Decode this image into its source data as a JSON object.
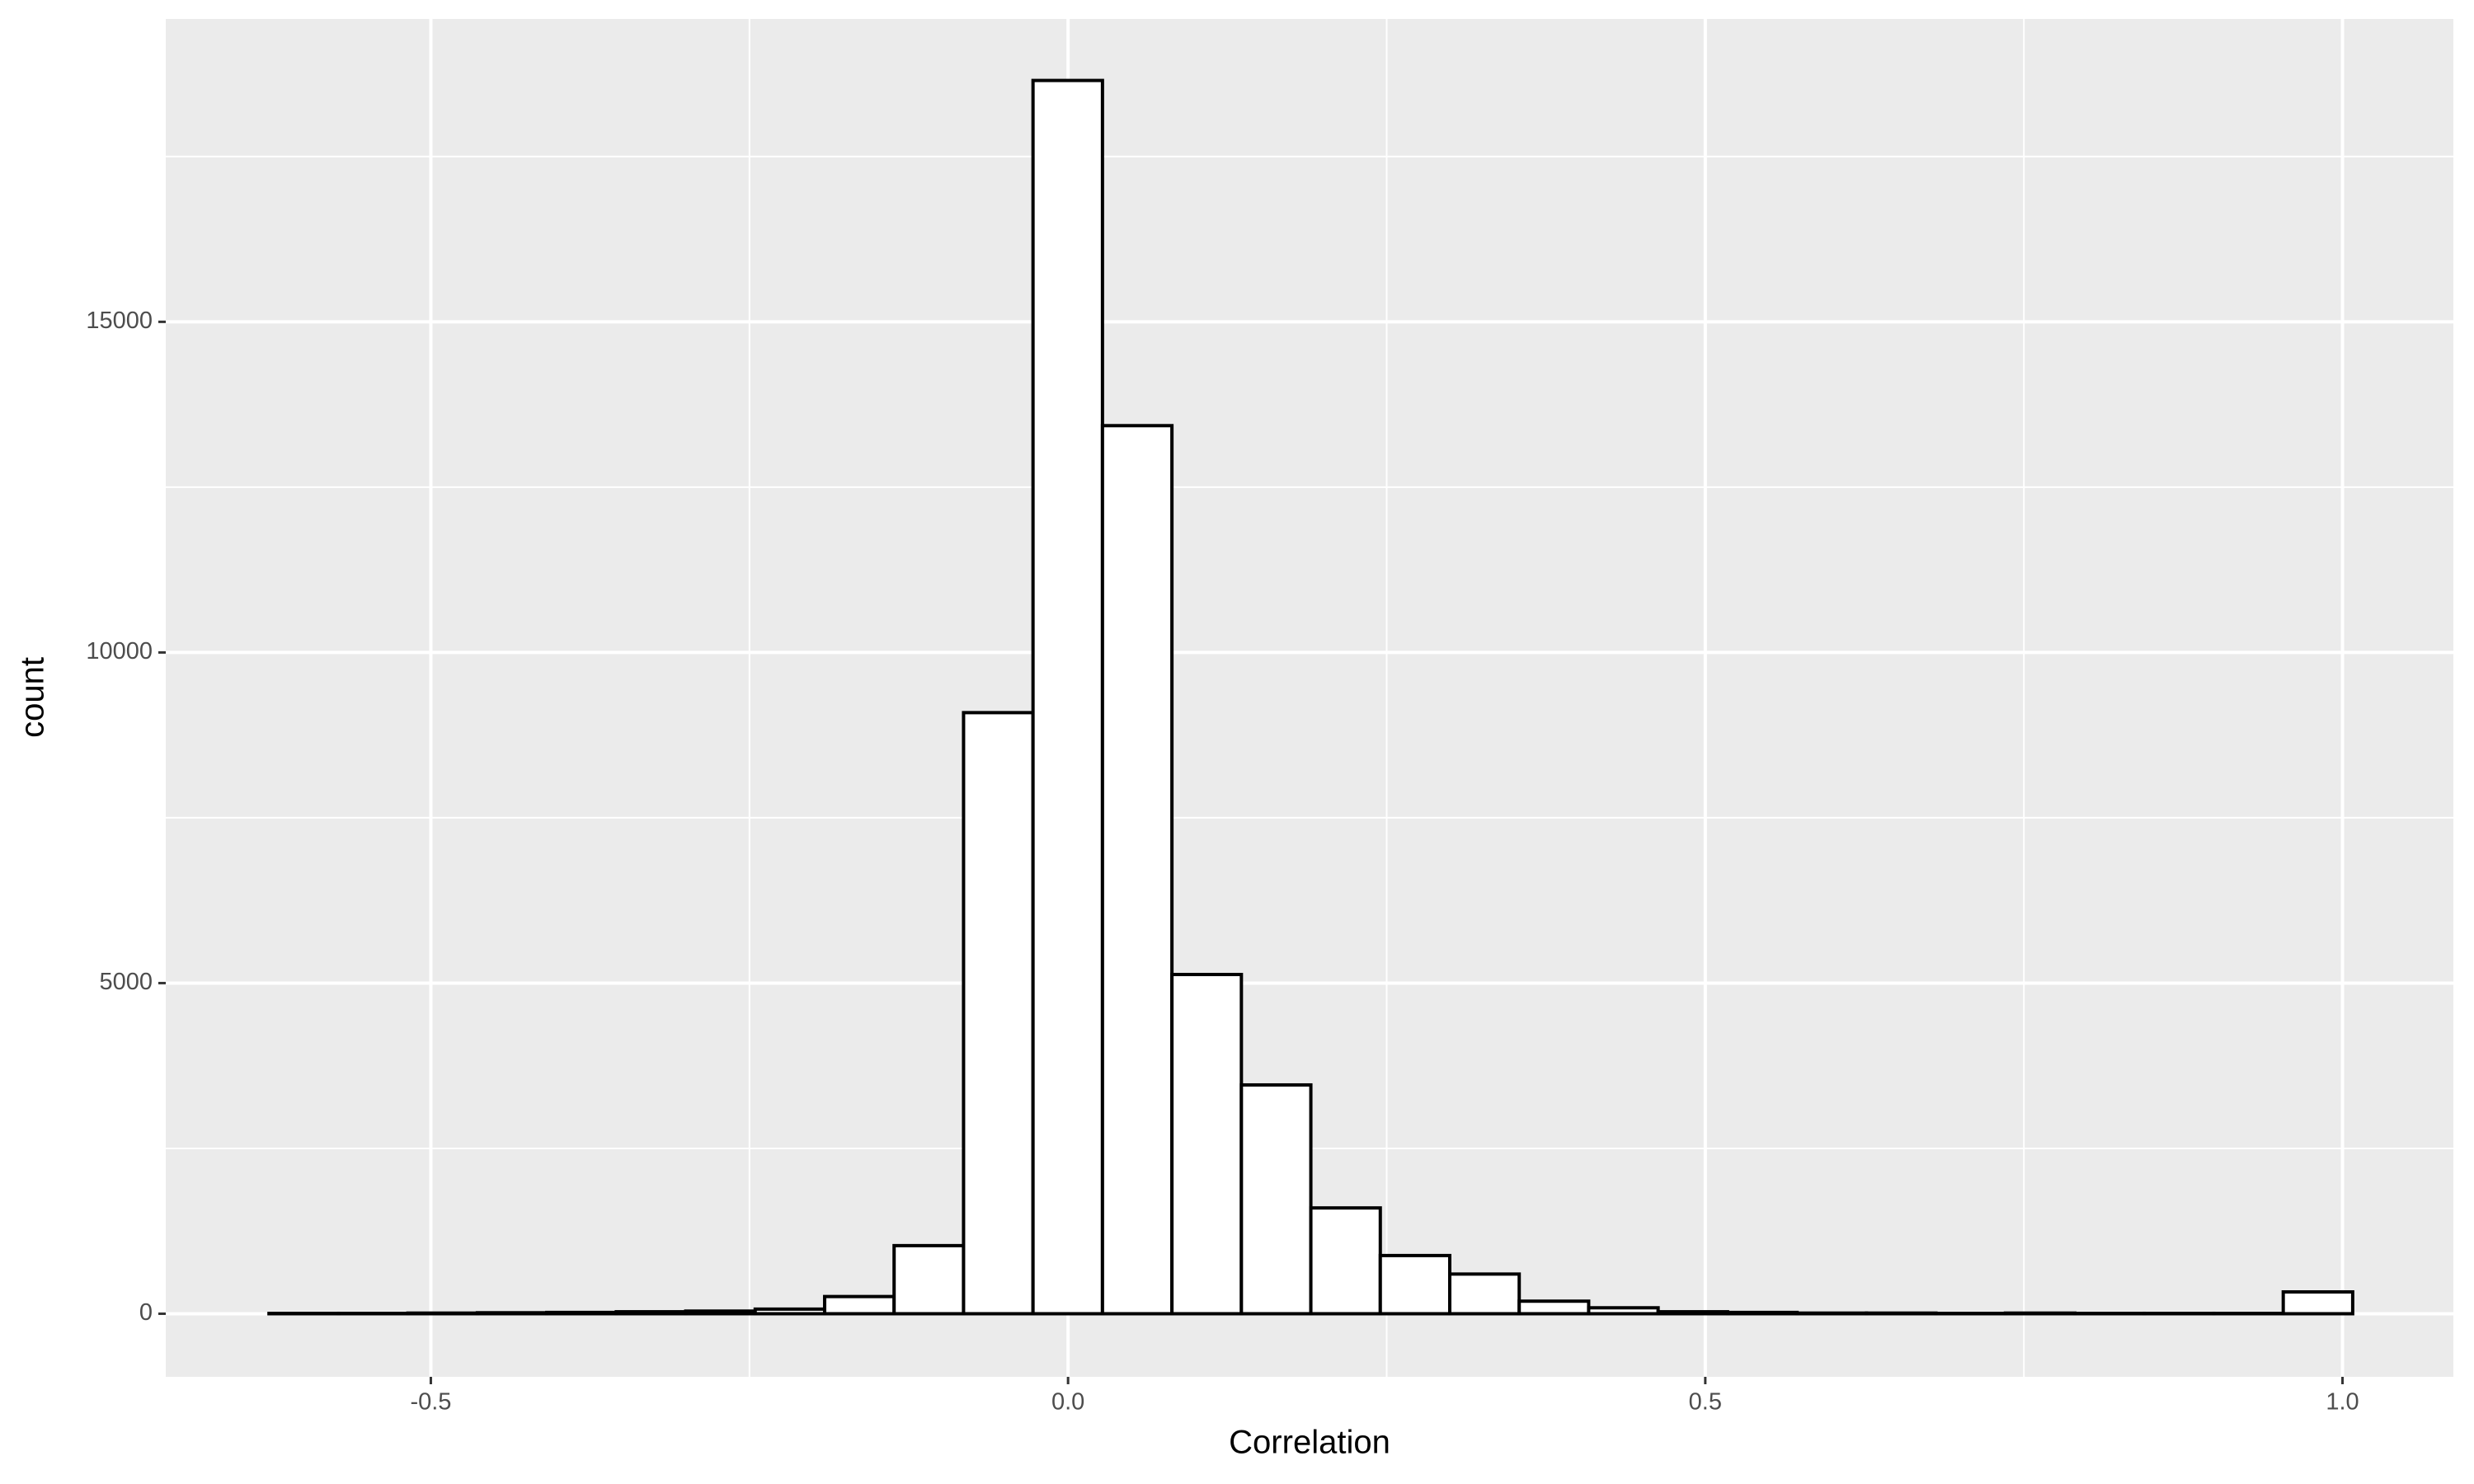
{
  "chart_data": {
    "type": "histogram",
    "x_label": "Correlation",
    "y_label": "count",
    "bins": [
      -0.627,
      -0.5725,
      -0.518,
      -0.4635,
      -0.409,
      -0.3545,
      -0.3,
      -0.2455,
      -0.191,
      -0.1365,
      -0.082,
      -0.0275,
      0.027,
      0.0815,
      0.136,
      0.1905,
      0.245,
      0.2995,
      0.354,
      0.4085,
      0.463,
      0.5175,
      0.572,
      0.6265,
      0.681,
      0.7355,
      0.79,
      0.8445,
      0.899,
      0.9535,
      1.008
    ],
    "counts": [
      5,
      5,
      10,
      15,
      20,
      30,
      40,
      70,
      260,
      1030,
      9090,
      18650,
      13430,
      5130,
      3460,
      1600,
      880,
      600,
      190,
      90,
      30,
      20,
      10,
      10,
      5,
      10,
      5,
      5,
      5,
      330
    ],
    "fill": "#ffffff",
    "edge_color": "#000000",
    "panel_color": "#ebebeb",
    "grid_color": "#ffffff",
    "grid": true,
    "minor_grid": true,
    "xlim": [
      -0.708,
      1.087
    ],
    "ylim": [
      -954,
      19580
    ],
    "xticks": [
      -0.5,
      {
        "value": 0,
        "label": "0.0"
      },
      0.5,
      {
        "value": 1,
        "label": "1.0"
      }
    ],
    "yticks": [
      0,
      5000,
      10000,
      15000
    ]
  }
}
